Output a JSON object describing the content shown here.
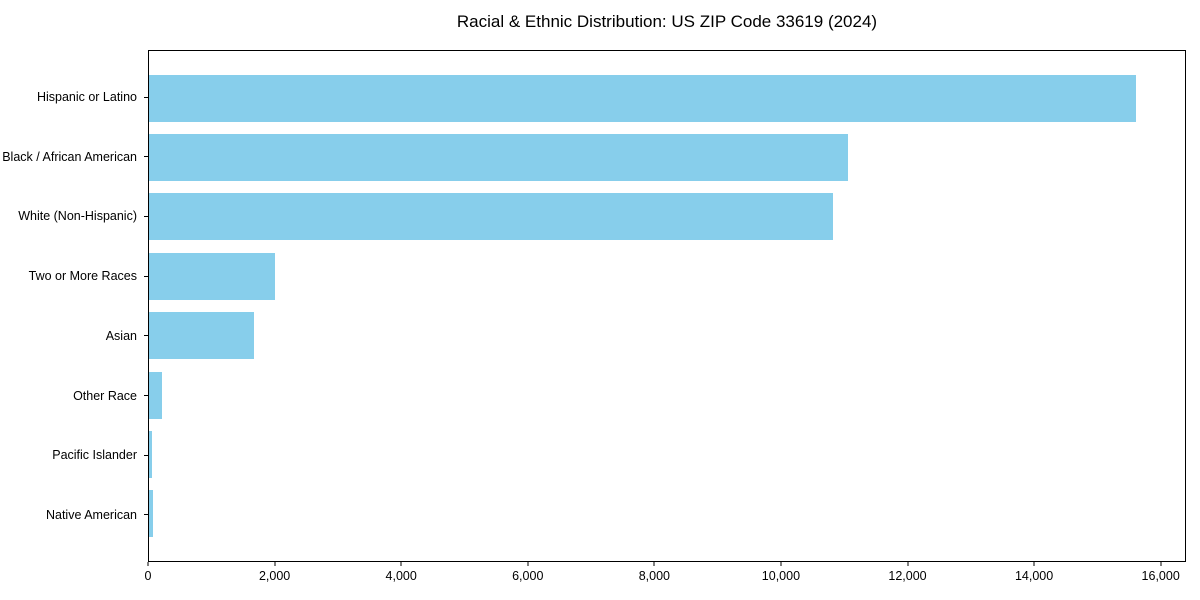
{
  "page": {
    "background_color": "#ffffff",
    "text_color": "#000000"
  },
  "chart_data": {
    "type": "bar",
    "orientation": "horizontal",
    "title": "Racial & Ethnic Distribution: US ZIP Code 33619 (2024)",
    "categories": [
      "Hispanic or Latino",
      "Black / African American",
      "White (Non-Hispanic)",
      "Two or More Races",
      "Asian",
      "Other Race",
      "Pacific Islander",
      "Native American"
    ],
    "values": [
      15620,
      11060,
      10820,
      2000,
      1660,
      200,
      50,
      60
    ],
    "bar_color": "#87CEEB",
    "axis_color": "#000000",
    "xlabel": "",
    "ylabel": "",
    "xlim": [
      0,
      16400
    ],
    "xticks": [
      0,
      2000,
      4000,
      6000,
      8000,
      10000,
      12000,
      14000,
      16000
    ],
    "xtick_labels": [
      "0",
      "2,000",
      "4,000",
      "6,000",
      "8,000",
      "10,000",
      "12,000",
      "14,000",
      "16,000"
    ],
    "grid": false,
    "legend": null
  }
}
